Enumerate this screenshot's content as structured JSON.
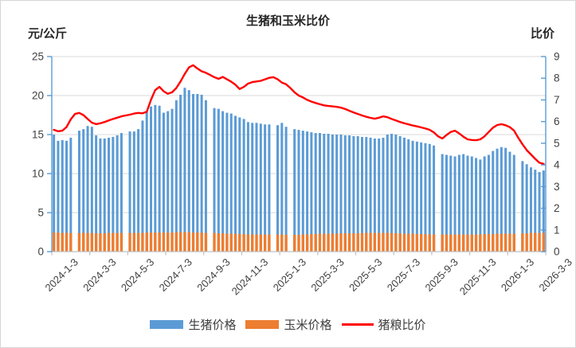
{
  "title": "生猪和玉米比价",
  "left_axis_unit": "元/公斤",
  "right_axis_unit": "比价",
  "legend": {
    "pig": "生猪价格",
    "corn": "玉米价格",
    "ratio": "猪粮比价"
  },
  "colors": {
    "pig_bar": "#5B9BD5",
    "corn_bar": "#ED7D31",
    "ratio_line": "#FF0000",
    "gridline": "#D9D9D9",
    "value_axis": "#5B9BD5",
    "category_axis": "#BFBFBF",
    "tick_text": "#404040"
  },
  "chart_data": {
    "type": "combo",
    "title": "生猪和玉米比价",
    "x_tick_labels": [
      "2024-1-3",
      "2024-3-3",
      "2024-5-3",
      "2024-7-3",
      "2024-9-3",
      "2024-11-3",
      "2025-1-3",
      "2025-3-3",
      "2025-5-3",
      "2025-7-3",
      "2025-9-3",
      "2025-11-3",
      "2026-1-3",
      "2026-3-3"
    ],
    "left_axis": {
      "label": "元/公斤",
      "min": 0,
      "max": 25,
      "tick_labels": [
        "0",
        "5",
        "10",
        "15",
        "20",
        "25"
      ]
    },
    "right_axis": {
      "label": "比价",
      "min": 0,
      "max": 9,
      "tick_labels": [
        "0",
        "1",
        "2",
        "3",
        "4",
        "5",
        "6",
        "7",
        "8",
        "9"
      ]
    },
    "grid": "horizontal",
    "legend_position": "bottom",
    "note_gaps": "null = missing holiday week (no bar drawn)",
    "series": [
      {
        "name": "生猪价格",
        "type": "bar",
        "axis": "left",
        "values": [
          15.0,
          14.2,
          14.3,
          14.2,
          14.6,
          null,
          15.5,
          15.7,
          16.1,
          16.0,
          14.9,
          14.5,
          14.5,
          14.6,
          14.7,
          14.9,
          15.2,
          null,
          15.4,
          15.4,
          15.7,
          16.8,
          17.9,
          18.6,
          18.8,
          18.7,
          17.8,
          18.0,
          18.3,
          19.4,
          20.1,
          21.0,
          20.7,
          20.2,
          20.2,
          20.1,
          19.4,
          null,
          18.4,
          18.3,
          18.0,
          17.8,
          17.7,
          17.4,
          17.2,
          17.0,
          16.6,
          16.5,
          16.5,
          16.4,
          16.3,
          16.3,
          null,
          16.2,
          16.5,
          16.0,
          null,
          15.7,
          15.6,
          15.5,
          15.4,
          15.3,
          15.2,
          15.2,
          15.1,
          15.1,
          15.0,
          15.0,
          15.0,
          14.9,
          14.9,
          14.8,
          14.8,
          14.7,
          14.7,
          14.6,
          14.5,
          14.5,
          14.6,
          15.0,
          15.1,
          15.0,
          14.8,
          14.6,
          14.4,
          14.2,
          14.1,
          14.0,
          13.9,
          13.8,
          13.6,
          null,
          12.5,
          12.4,
          12.3,
          12.2,
          12.4,
          12.5,
          12.3,
          12.2,
          12.0,
          11.8,
          12.2,
          12.4,
          12.9,
          13.2,
          13.4,
          13.3,
          12.8,
          12.4,
          null,
          11.6,
          11.2,
          10.8,
          10.5,
          10.2,
          10.4
        ]
      },
      {
        "name": "玉米价格",
        "type": "bar",
        "axis": "left",
        "values": [
          2.45,
          2.45,
          2.4,
          2.4,
          2.4,
          null,
          2.4,
          2.4,
          2.4,
          2.4,
          2.35,
          2.35,
          2.35,
          2.4,
          2.4,
          2.4,
          2.4,
          null,
          2.4,
          2.4,
          2.4,
          2.4,
          2.45,
          2.45,
          2.45,
          2.45,
          2.45,
          2.45,
          2.45,
          2.5,
          2.5,
          2.5,
          2.5,
          2.45,
          2.45,
          2.45,
          2.4,
          null,
          2.4,
          2.35,
          2.35,
          2.3,
          2.3,
          2.3,
          2.25,
          2.25,
          2.2,
          2.2,
          2.2,
          2.2,
          2.2,
          2.2,
          null,
          2.2,
          2.2,
          2.15,
          null,
          2.15,
          2.15,
          2.2,
          2.2,
          2.25,
          2.25,
          2.3,
          2.3,
          2.3,
          2.3,
          2.3,
          2.35,
          2.35,
          2.35,
          2.35,
          2.35,
          2.4,
          2.4,
          2.4,
          2.4,
          2.4,
          2.4,
          2.4,
          2.4,
          2.35,
          2.35,
          2.3,
          2.3,
          2.3,
          2.25,
          2.25,
          2.25,
          2.2,
          2.2,
          null,
          2.2,
          2.2,
          2.2,
          2.2,
          2.2,
          2.2,
          2.2,
          2.2,
          2.2,
          2.2,
          2.25,
          2.25,
          2.25,
          2.3,
          2.3,
          2.3,
          2.3,
          2.3,
          null,
          2.35,
          2.35,
          2.4,
          2.4,
          2.4,
          2.4
        ]
      },
      {
        "name": "猪粮比价",
        "type": "line",
        "axis": "right",
        "values": [
          5.62,
          5.55,
          5.58,
          5.75,
          6.1,
          6.35,
          6.4,
          6.3,
          6.12,
          5.95,
          5.88,
          5.92,
          5.98,
          6.05,
          6.12,
          6.18,
          6.24,
          6.28,
          6.32,
          6.37,
          6.4,
          6.38,
          6.45,
          7.0,
          7.45,
          7.6,
          7.4,
          7.28,
          7.35,
          7.55,
          7.85,
          8.2,
          8.5,
          8.6,
          8.45,
          8.32,
          8.25,
          8.15,
          8.05,
          7.97,
          8.06,
          7.95,
          7.84,
          7.7,
          7.5,
          7.6,
          7.75,
          7.82,
          7.85,
          7.88,
          7.95,
          8.02,
          8.05,
          7.95,
          7.8,
          7.72,
          7.55,
          7.35,
          7.2,
          7.11,
          7.0,
          6.92,
          6.86,
          6.8,
          6.75,
          6.72,
          6.7,
          6.68,
          6.64,
          6.58,
          6.5,
          6.42,
          6.35,
          6.28,
          6.22,
          6.17,
          6.13,
          6.18,
          6.24,
          6.2,
          6.12,
          6.05,
          5.98,
          5.92,
          5.87,
          5.82,
          5.78,
          5.73,
          5.68,
          5.62,
          5.5,
          5.32,
          5.22,
          5.38,
          5.52,
          5.58,
          5.45,
          5.3,
          5.18,
          5.15,
          5.14,
          5.18,
          5.32,
          5.52,
          5.72,
          5.84,
          5.88,
          5.83,
          5.74,
          5.58,
          5.25,
          4.95,
          4.68,
          4.48,
          4.28,
          4.1,
          4.05
        ]
      }
    ]
  }
}
